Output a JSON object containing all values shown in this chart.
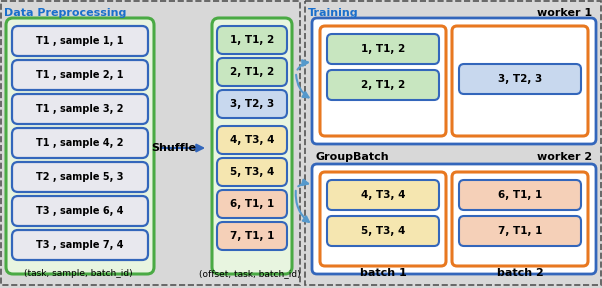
{
  "bg_color": "#d8d8d8",
  "title_color": "#1a6fcc",
  "green_border": "#4aaa44",
  "blue_border": "#3366bb",
  "orange_border": "#e87820",
  "green_fill_pale": "#e8f5e0",
  "yellow_fill": "#f5e6b0",
  "pink_fill": "#f5d0b8",
  "blue_fill_light": "#c8d8ee",
  "white_fill": "#ffffff",
  "gray_fill": "#e8e8ee",
  "dashed_border": "#555555",
  "arrow_color": "#5599cc",
  "preproc_left_items": [
    "T1 , sample 1, 1",
    "T1 , sample 2, 1",
    "T1 , sample 3, 2",
    "T1 , sample 4, 2",
    "T2 , sample 5, 3",
    "T3 , sample 6, 4",
    "T3 , sample 7, 4"
  ],
  "shuffle_items": [
    "1, T1, 2",
    "2, T1, 2",
    "3, T2, 3",
    "4, T3, 4",
    "5, T3, 4",
    "6, T1, 1",
    "7, T1, 1"
  ],
  "shuffle_colors": [
    "#c8e6c0",
    "#c8e6c0",
    "#c8d8ee",
    "#f5e6b0",
    "#f5e6b0",
    "#f5d0b8",
    "#f5d0b8"
  ],
  "worker1_batch1_items": [
    "1, T1, 2",
    "2, T1, 2"
  ],
  "worker1_batch1_color": "#c8e6c0",
  "worker1_batch2_item": "3, T2, 3",
  "worker1_batch2_color": "#c8d8ee",
  "worker2_batch1_items": [
    "4, T3, 4",
    "5, T3, 4"
  ],
  "worker2_batch1_color": "#f5e6b0",
  "worker2_batch2_items": [
    "6, T1, 1",
    "7, T1, 1"
  ],
  "worker2_batch2_color": "#f5d0b8"
}
